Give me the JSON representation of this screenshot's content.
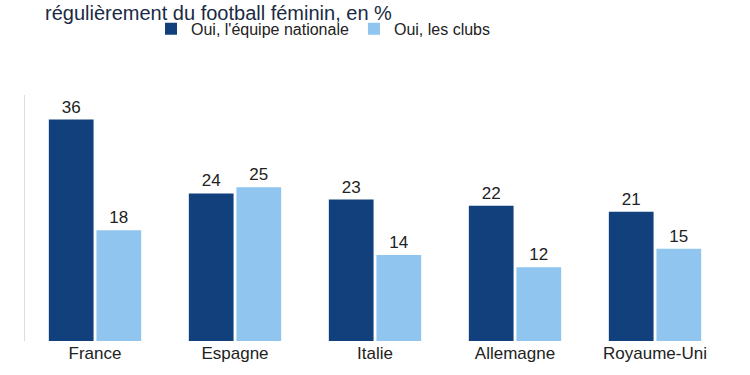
{
  "chart_data": {
    "type": "bar",
    "title": "régulièrement du football féminin, en %",
    "categories": [
      "France",
      "Espagne",
      "Italie",
      "Allemagne",
      "Royaume-Uni"
    ],
    "series": [
      {
        "name": "Oui, l'équipe nationale",
        "color": "#12407d",
        "values": [
          36,
          24,
          23,
          22,
          21
        ]
      },
      {
        "name": "Oui, les clubs",
        "color": "#8fc5ef",
        "values": [
          18,
          25,
          14,
          12,
          15
        ]
      }
    ],
    "ylim": [
      0,
      40
    ],
    "grid": false,
    "data_labels": true,
    "tick_labels": "x",
    "legend": "top"
  }
}
